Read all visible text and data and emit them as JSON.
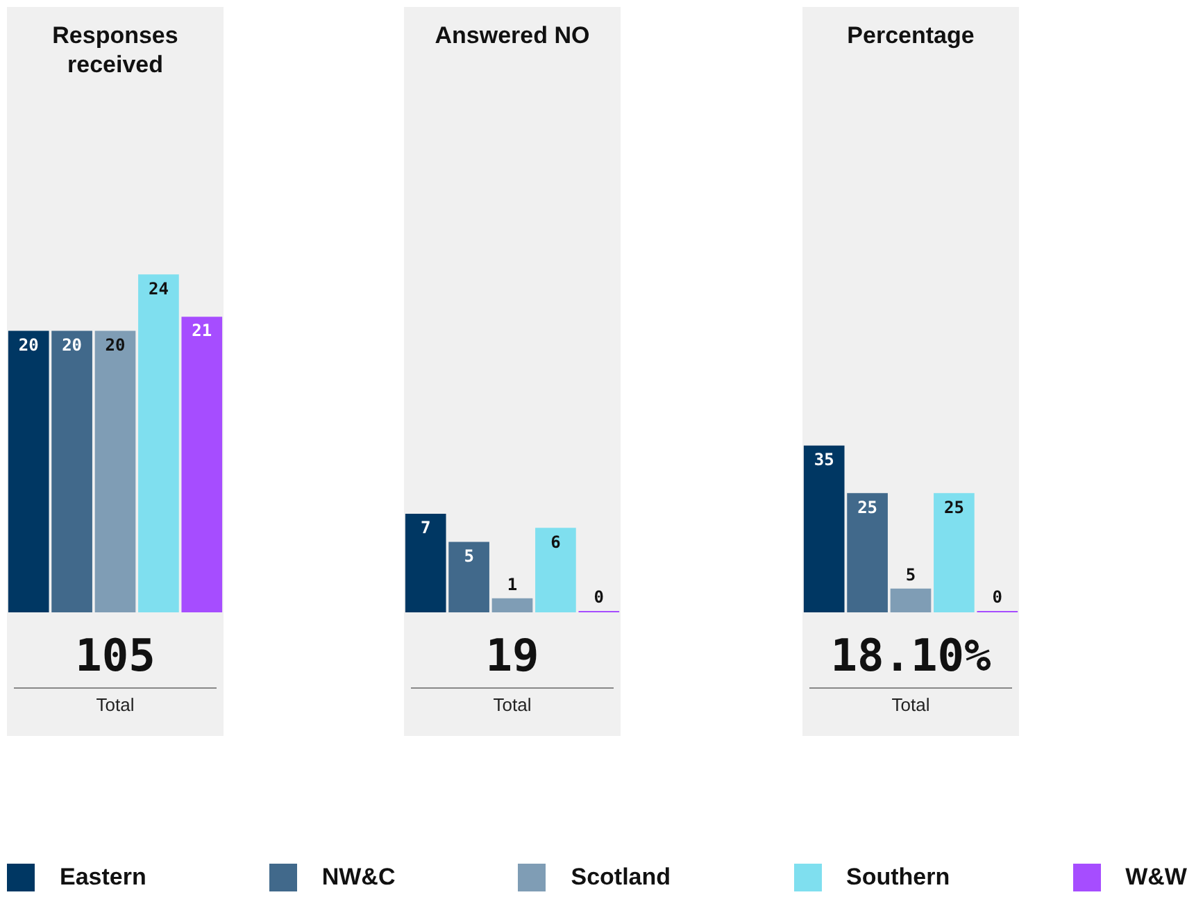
{
  "chart_data": [
    {
      "type": "bar",
      "title": "Responses received",
      "categories": [
        null
      ],
      "ylim": [
        0,
        43
      ],
      "tick_labels": false,
      "legend": "bottom",
      "data_labels": true,
      "annotations": [
        "105",
        "Total"
      ],
      "series": [
        {
          "name": "Eastern",
          "color": "#003763",
          "values": [
            20
          ]
        },
        {
          "name": "NW&C",
          "color": "#41698b",
          "values": [
            20
          ]
        },
        {
          "name": "Scotland",
          "color": "#7f9db5",
          "values": [
            20
          ]
        },
        {
          "name": "Southern",
          "color": "#7fdfef",
          "values": [
            24
          ]
        },
        {
          "name": "W&W",
          "color": "#a64dff",
          "values": [
            21
          ]
        }
      ]
    },
    {
      "type": "bar",
      "title": "Answered NO",
      "categories": [
        null
      ],
      "ylim": [
        0,
        43
      ],
      "tick_labels": false,
      "data_labels": true,
      "annotations": [
        "19",
        "Total"
      ],
      "series": [
        {
          "color": "#003763",
          "values": [
            7
          ]
        },
        {
          "color": "#41698b",
          "values": [
            5
          ]
        },
        {
          "color": "#7f9db5",
          "values": [
            1
          ]
        },
        {
          "color": "#7fdfef",
          "values": [
            6
          ]
        },
        {
          "color": "#a64dff",
          "values": [
            0
          ]
        }
      ]
    },
    {
      "type": "bar",
      "title": "Percentage",
      "categories": [
        null
      ],
      "ylim": [
        0,
        127
      ],
      "tick_labels": false,
      "data_labels": true,
      "annotations": [
        "18.10%",
        "Total"
      ],
      "series": [
        {
          "color": "#003763",
          "values": [
            35
          ]
        },
        {
          "color": "#41698b",
          "values": [
            25
          ]
        },
        {
          "color": "#7f9db5",
          "values": [
            5
          ]
        },
        {
          "color": "#7fdfef",
          "values": [
            25
          ]
        },
        {
          "color": "#a64dff",
          "values": [
            0
          ]
        }
      ]
    }
  ]
}
